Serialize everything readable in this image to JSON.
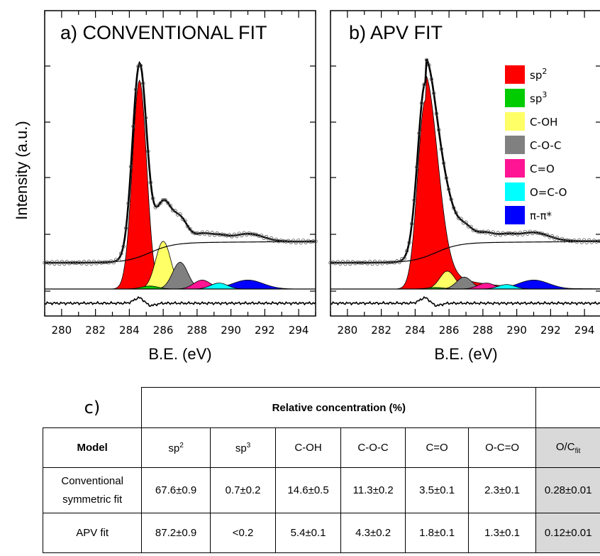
{
  "chart_data": [
    {
      "type": "line",
      "title": "a) CONVENTIONAL FIT",
      "xlabel": "B.E. (eV)",
      "ylabel": "Intensity (a.u.)",
      "xlim": [
        279,
        295
      ],
      "xticks": [
        280,
        282,
        284,
        286,
        288,
        290,
        292,
        294
      ],
      "components": [
        {
          "name": "sp2",
          "color": "#ff0000",
          "center": 284.6,
          "amplitude": 0.7,
          "width": 0.42,
          "shape": "gaussian"
        },
        {
          "name": "sp3",
          "color": "#00cc00",
          "center": 285.2,
          "amplitude": 0.01,
          "width": 0.5,
          "shape": "gaussian"
        },
        {
          "name": "C-OH",
          "color": "#ffff66",
          "center": 286.0,
          "amplitude": 0.16,
          "width": 0.45,
          "shape": "gaussian"
        },
        {
          "name": "C-O-C",
          "color": "#808080",
          "center": 287.0,
          "amplitude": 0.09,
          "width": 0.45,
          "shape": "gaussian"
        },
        {
          "name": "C=O",
          "color": "#ff1493",
          "center": 288.3,
          "amplitude": 0.03,
          "width": 0.5,
          "shape": "gaussian"
        },
        {
          "name": "O=C-O",
          "color": "#00ffff",
          "center": 289.3,
          "amplitude": 0.02,
          "width": 0.5,
          "shape": "gaussian"
        },
        {
          "name": "π-π*",
          "color": "#0000ff",
          "center": 291.0,
          "amplitude": 0.03,
          "width": 0.9,
          "shape": "gaussian"
        }
      ]
    },
    {
      "type": "line",
      "title": "b) APV FIT",
      "xlabel": "B.E. (eV)",
      "ylabel": "",
      "xlim": [
        279,
        295
      ],
      "xticks": [
        280,
        282,
        284,
        286,
        288,
        290,
        292,
        294
      ],
      "components": [
        {
          "name": "sp2",
          "color": "#ff0000",
          "center": 284.6,
          "amplitude": 0.72,
          "width": 0.45,
          "shape": "asymmetric"
        },
        {
          "name": "sp3",
          "color": "#00cc00",
          "center": 285.2,
          "amplitude": 0.005,
          "width": 0.5,
          "shape": "gaussian"
        },
        {
          "name": "C-OH",
          "color": "#ffff66",
          "center": 285.9,
          "amplitude": 0.06,
          "width": 0.45,
          "shape": "gaussian"
        },
        {
          "name": "C-O-C",
          "color": "#808080",
          "center": 286.9,
          "amplitude": 0.04,
          "width": 0.45,
          "shape": "gaussian"
        },
        {
          "name": "C=O",
          "color": "#ff1493",
          "center": 288.2,
          "amplitude": 0.02,
          "width": 0.5,
          "shape": "gaussian"
        },
        {
          "name": "O=C-O",
          "color": "#00ffff",
          "center": 289.4,
          "amplitude": 0.015,
          "width": 0.5,
          "shape": "gaussian"
        },
        {
          "name": "π-π*",
          "color": "#0000ff",
          "center": 291.0,
          "amplitude": 0.03,
          "width": 0.9,
          "shape": "gaussian"
        }
      ]
    }
  ],
  "legend": {
    "items": [
      {
        "base": "sp",
        "sup": "2",
        "color": "#ff0000"
      },
      {
        "base": "sp",
        "sup": "3",
        "color": "#00cc00"
      },
      {
        "base": "C-OH",
        "sup": "",
        "color": "#ffff66"
      },
      {
        "base": "C-O-C",
        "sup": "",
        "color": "#808080"
      },
      {
        "base": "C=O",
        "sup": "",
        "color": "#ff1493"
      },
      {
        "base": "O=C-O",
        "sup": "",
        "color": "#00ffff"
      },
      {
        "base": "π-π*",
        "sup": "",
        "color": "#0000ff"
      }
    ]
  },
  "table": {
    "panel_label": "c)",
    "group_header": "Relative concentration (%)",
    "header": {
      "model": "Model",
      "sp2_base": "sp",
      "sp2_sup": "2",
      "sp3_base": "sp",
      "sp3_sup": "3",
      "coh": "C-OH",
      "coc": "C-O-C",
      "co": "C=O",
      "oco": "O-C=O",
      "oc_base": "O/C",
      "oc_sub": "fit"
    },
    "rows": [
      {
        "model_line1": "Conventional",
        "model_line2": "symmetric fit",
        "values": [
          "67.6±0.9",
          "0.7±0.2",
          "14.6±0.5",
          "11.3±0.2",
          "3.5±0.1",
          "2.3±0.1",
          "0.28±0.01"
        ]
      },
      {
        "model_line1": "APV fit",
        "model_line2": "",
        "values": [
          "87.2±0.9",
          "<0.2",
          "5.4±0.1",
          "4.3±0.2",
          "1.8±0.1",
          "1.3±0.1",
          "0.12±0.01"
        ]
      }
    ]
  }
}
